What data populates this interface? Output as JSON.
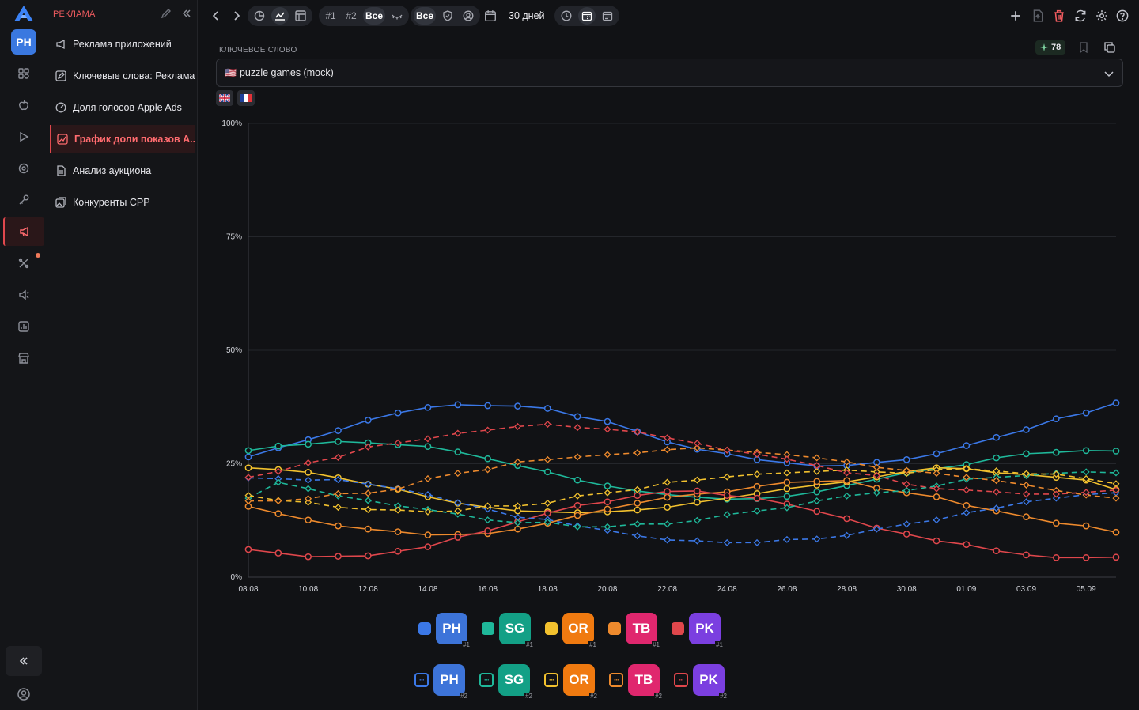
{
  "rail": {
    "avatar": "PH",
    "icons": [
      "apps-icon",
      "apple-icon",
      "play-icon",
      "target-icon",
      "key-icon",
      "megaphone-icon",
      "tools-icon",
      "speaker-icon",
      "chart-icon",
      "store-icon"
    ]
  },
  "sidebar": {
    "section": "РЕКЛАМА",
    "items": [
      {
        "label": "Реклама приложений",
        "icon": "megaphone-icon"
      },
      {
        "label": "Ключевые слова: Реклама",
        "icon": "edit-box-icon"
      },
      {
        "label": "Доля голосов Apple Ads",
        "icon": "gauge-icon"
      },
      {
        "label": "График доли показов А...",
        "icon": "chart-box-icon",
        "active": true
      },
      {
        "label": "Анализ аукциона",
        "icon": "document-icon"
      },
      {
        "label": "Конкуренты CPP",
        "icon": "gallery-icon"
      }
    ]
  },
  "toolbar": {
    "rank1": "#1",
    "rank2": "#2",
    "rank_all": "Все",
    "filter_all": "Все",
    "period": "30 дней"
  },
  "keyword": {
    "label": "КЛЮЧЕВОЕ СЛОВО",
    "value": "puzzle games (mock)",
    "flag": "🇺🇸",
    "score": "78"
  },
  "colors": {
    "PH": "#3b78e7",
    "SG": "#1fb89a",
    "OR": "#f2c12e",
    "TB": "#ee8a2d",
    "PK": "#e0474c",
    "PH_av": "#3d74d9",
    "SG_av": "#13a086",
    "OR_av": "#f07a10",
    "TB_av": "#e0276e",
    "PK_av": "#7b3fe0"
  },
  "chart_data": {
    "type": "line",
    "yticks": [
      "0%",
      "25%",
      "50%",
      "75%",
      "100%"
    ],
    "ylim": [
      0,
      100
    ],
    "x": [
      "08.08",
      "09.08",
      "10.08",
      "11.08",
      "12.08",
      "13.08",
      "14.08",
      "15.08",
      "16.08",
      "17.08",
      "18.08",
      "19.08",
      "20.08",
      "21.08",
      "22.08",
      "23.08",
      "24.08",
      "25.08",
      "26.08",
      "27.08",
      "28.08",
      "29.08",
      "30.08",
      "31.08",
      "01.09",
      "02.09",
      "03.09",
      "04.09",
      "05.09",
      "06.09"
    ],
    "xticks": [
      "08.08",
      "10.08",
      "12.08",
      "14.08",
      "16.08",
      "18.08",
      "20.08",
      "22.08",
      "24.08",
      "26.08",
      "28.08",
      "30.08",
      "01.09",
      "03.09",
      "05.09"
    ],
    "series": [
      {
        "key": "PH",
        "rank": "#1",
        "dashed": false,
        "values": [
          26.5,
          28.5,
          30.3,
          32.3,
          34.6,
          36.2,
          37.4,
          38.0,
          37.8,
          37.7,
          37.2,
          35.4,
          34.3,
          32.1,
          29.8,
          28.2,
          27.2,
          25.9,
          25.2,
          24.5,
          24.6,
          25.3,
          25.9,
          27.2,
          29.0,
          30.8,
          32.5,
          34.9,
          36.2,
          38.4
        ]
      },
      {
        "key": "SG",
        "rank": "#1",
        "dashed": false,
        "values": [
          27.9,
          28.9,
          29.3,
          29.9,
          29.6,
          29.2,
          28.8,
          27.6,
          26.1,
          24.6,
          23.2,
          21.4,
          20.1,
          19.0,
          18.2,
          17.6,
          17.2,
          17.3,
          17.8,
          18.8,
          20.2,
          21.6,
          23.0,
          23.9,
          24.8,
          26.3,
          27.2,
          27.5,
          27.9,
          27.8
        ]
      },
      {
        "key": "OR",
        "rank": "#1",
        "dashed": false,
        "values": [
          24.1,
          23.7,
          23.1,
          21.9,
          20.5,
          19.4,
          17.7,
          16.3,
          15.4,
          14.6,
          14.4,
          14.2,
          14.4,
          14.8,
          15.4,
          16.5,
          17.4,
          18.4,
          19.5,
          20.3,
          21.0,
          22.1,
          23.3,
          24.1,
          23.9,
          23.0,
          22.6,
          22.0,
          21.4,
          19.3
        ]
      },
      {
        "key": "TB",
        "rank": "#1",
        "dashed": false,
        "values": [
          15.6,
          14.0,
          12.6,
          11.3,
          10.6,
          10.0,
          9.3,
          9.4,
          9.6,
          10.6,
          11.9,
          13.6,
          15.0,
          16.3,
          17.6,
          18.3,
          18.8,
          20.0,
          20.9,
          21.1,
          21.3,
          19.6,
          18.6,
          17.7,
          15.8,
          14.6,
          13.3,
          11.9,
          11.3,
          9.9
        ]
      },
      {
        "key": "PK",
        "rank": "#1",
        "dashed": false,
        "values": [
          6.1,
          5.3,
          4.5,
          4.6,
          4.7,
          5.7,
          6.7,
          8.8,
          10.2,
          12.2,
          14.1,
          15.8,
          16.6,
          18.0,
          18.9,
          19.0,
          18.0,
          17.4,
          16.1,
          14.5,
          12.9,
          10.8,
          9.5,
          8.0,
          7.2,
          5.8,
          4.9,
          4.3,
          4.3,
          4.4
        ]
      },
      {
        "key": "PH",
        "rank": "#2",
        "dashed": true,
        "values": [
          21.9,
          21.7,
          21.4,
          21.5,
          20.5,
          19.5,
          18.2,
          16.4,
          15.0,
          13.2,
          12.7,
          11.3,
          10.3,
          9.1,
          8.2,
          8.0,
          7.6,
          7.6,
          8.3,
          8.4,
          9.2,
          10.6,
          11.7,
          12.6,
          14.2,
          15.2,
          16.6,
          17.4,
          18.2,
          18.6
        ]
      },
      {
        "key": "SG",
        "rank": "#2",
        "dashed": true,
        "values": [
          17.4,
          20.9,
          19.5,
          17.9,
          16.9,
          15.7,
          14.9,
          13.9,
          12.6,
          12.0,
          12.1,
          11.1,
          11.1,
          11.7,
          11.7,
          12.5,
          13.8,
          14.6,
          15.3,
          16.8,
          17.9,
          18.6,
          19.1,
          20.1,
          21.6,
          22.0,
          22.4,
          22.9,
          23.2,
          23.0
        ]
      },
      {
        "key": "OR",
        "rank": "#2",
        "dashed": true,
        "values": [
          18.0,
          16.9,
          16.5,
          15.4,
          14.9,
          14.8,
          14.4,
          14.6,
          15.7,
          15.7,
          16.3,
          17.9,
          18.6,
          19.3,
          20.9,
          21.4,
          22.1,
          22.7,
          23.0,
          23.3,
          23.6,
          23.2,
          22.9,
          23.7,
          23.9,
          23.4,
          22.8,
          22.7,
          21.7,
          20.6
        ]
      },
      {
        "key": "TB",
        "rank": "#2",
        "dashed": true,
        "values": [
          16.8,
          16.8,
          17.3,
          18.4,
          18.5,
          19.4,
          21.7,
          22.9,
          23.7,
          25.4,
          25.9,
          26.5,
          27.0,
          27.4,
          28.1,
          28.5,
          28.0,
          27.5,
          27.0,
          26.3,
          25.4,
          24.2,
          23.5,
          22.9,
          22.0,
          21.3,
          20.3,
          19.1,
          18.1,
          17.4
        ]
      },
      {
        "key": "PK",
        "rank": "#2",
        "dashed": true,
        "values": [
          22.0,
          23.3,
          25.2,
          26.4,
          28.7,
          29.6,
          30.5,
          31.7,
          32.4,
          33.2,
          33.7,
          33.0,
          32.6,
          32.0,
          30.7,
          29.5,
          28.0,
          27.1,
          26.0,
          24.6,
          23.0,
          22.4,
          20.5,
          19.5,
          19.2,
          18.8,
          18.3,
          18.3,
          18.7,
          19.2
        ]
      }
    ]
  },
  "legend": {
    "row1": [
      {
        "key": "PH",
        "label": "PH",
        "rank": "#1"
      },
      {
        "key": "SG",
        "label": "SG",
        "rank": "#1"
      },
      {
        "key": "OR",
        "label": "OR",
        "rank": "#1"
      },
      {
        "key": "TB",
        "label": "TB",
        "rank": "#1"
      },
      {
        "key": "PK",
        "label": "PK",
        "rank": "#1"
      }
    ],
    "row2": [
      {
        "key": "PH",
        "label": "PH",
        "rank": "#2"
      },
      {
        "key": "SG",
        "label": "SG",
        "rank": "#2"
      },
      {
        "key": "OR",
        "label": "OR",
        "rank": "#2"
      },
      {
        "key": "TB",
        "label": "TB",
        "rank": "#2"
      },
      {
        "key": "PK",
        "label": "PK",
        "rank": "#2"
      }
    ],
    "dash_glyph": "···"
  }
}
